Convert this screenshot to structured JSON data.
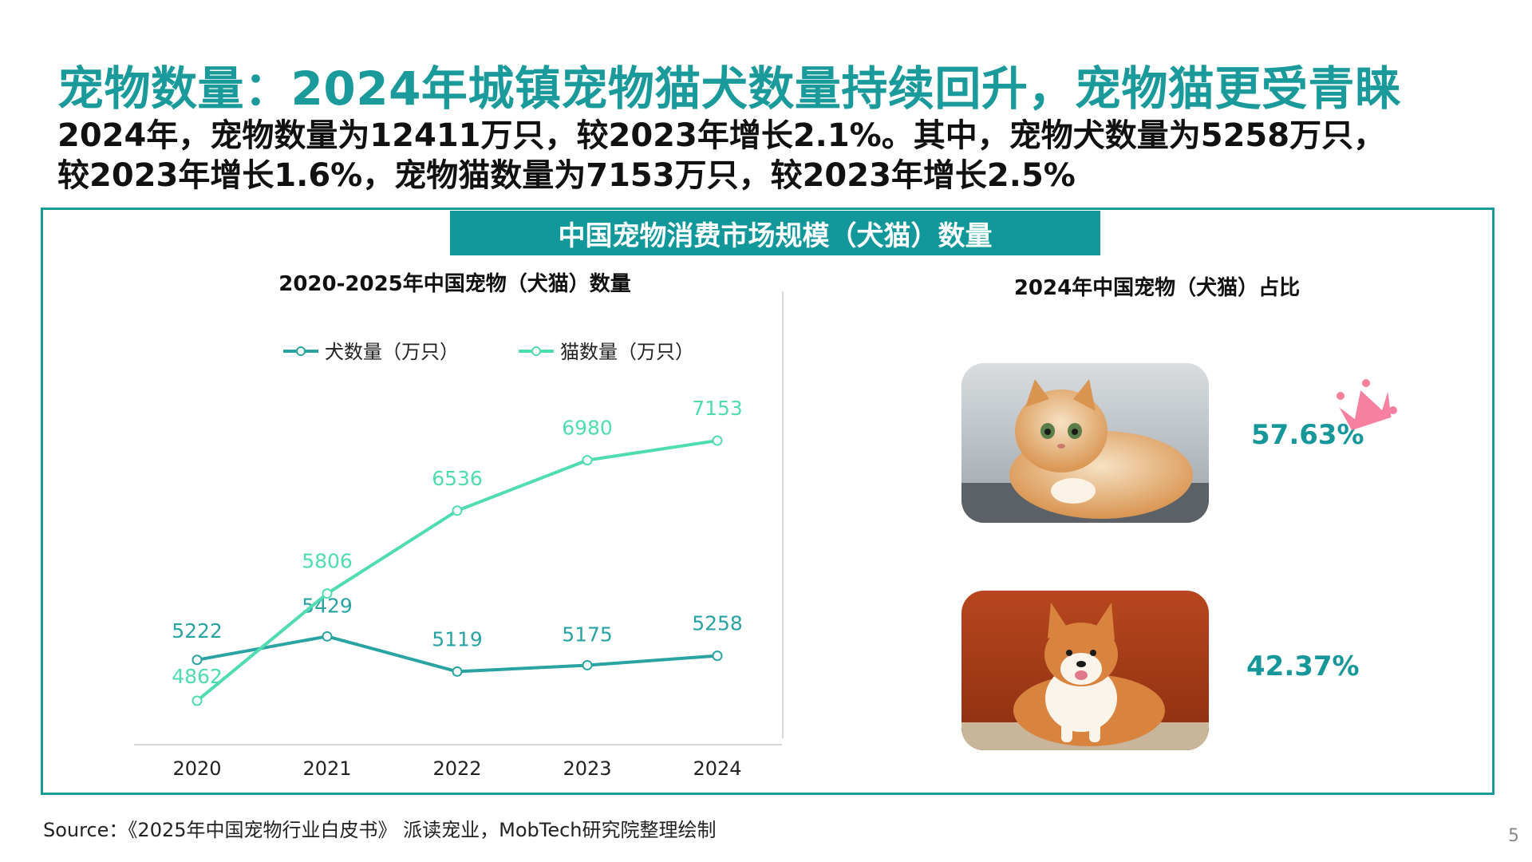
{
  "header": {
    "title": "宠物数量：2024年城镇宠物猫犬数量持续回升，宠物猫更受青睐",
    "subtitle_line1": "2024年，宠物数量为12411万只，较2023年增长2.1%。其中，宠物犬数量为5258万只，",
    "subtitle_line2": "较2023年增长1.6%，宠物猫数量为7153万只，较2023年增长2.5%"
  },
  "banner": "中国宠物消费市场规模（犬猫）数量",
  "right_panel": {
    "title": "2024年中国宠物（犬猫）占比",
    "cat_share": "57.63%",
    "dog_share": "42.37%",
    "cat_image": "orange-cat-photo",
    "dog_image": "corgi-dog-photo"
  },
  "chart_data": {
    "type": "line",
    "title": "2020-2025年中国宠物（犬猫）数量",
    "categories": [
      "2020",
      "2021",
      "2022",
      "2023",
      "2024"
    ],
    "series": [
      {
        "name": "犬数量（万只）",
        "values": [
          5222,
          5429,
          5119,
          5175,
          5258
        ],
        "color": "#2aa3a3"
      },
      {
        "name": "猫数量（万只）",
        "values": [
          4862,
          5806,
          6536,
          6980,
          7153
        ],
        "color": "#4fdcb0"
      }
    ],
    "legend_position": "top",
    "grid": false
  },
  "footer": {
    "source": "Source：《2025年中国宠物行业白皮书》 派读宠业，MobTech研究院整理绘制",
    "page_number": "5"
  }
}
